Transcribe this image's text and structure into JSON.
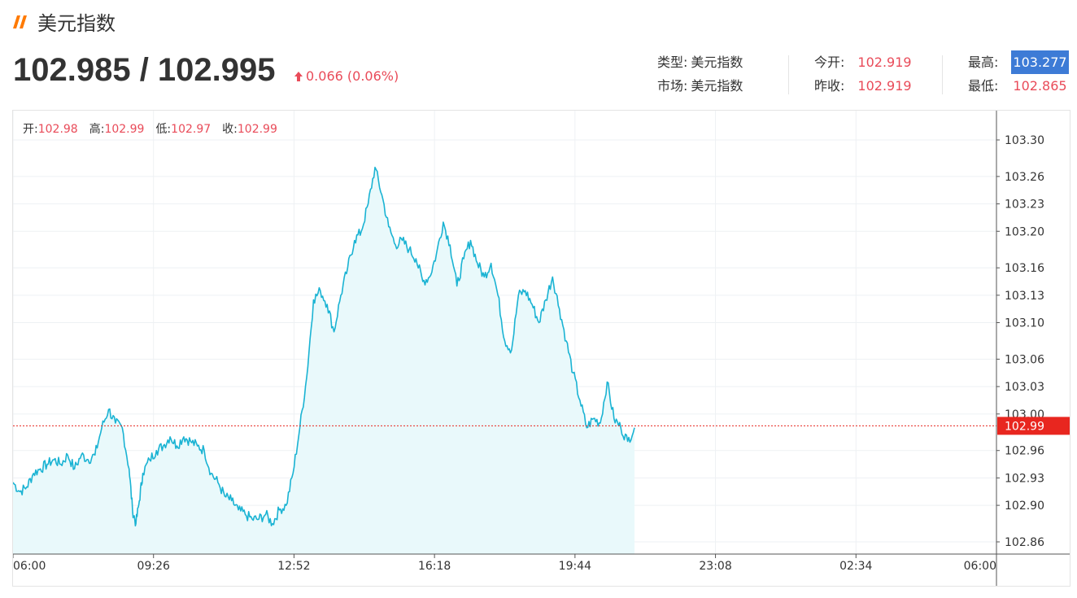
{
  "header": {
    "title": "美元指数",
    "bid_ask": "102.985 / 102.995",
    "change": "0.066 (0.06%)",
    "accent_color": "#ff7a00",
    "up_color": "#e94b59"
  },
  "info_panel": {
    "type_label": "类型:",
    "type_value": "美元指数",
    "market_label": "市场:",
    "market_value": "美元指数",
    "open_label": "今开:",
    "open_value": "102.919",
    "prev_close_label": "昨收:",
    "prev_close_value": "102.919",
    "high_label": "最高:",
    "high_value": "103.277",
    "low_label": "最低:",
    "low_value": "102.865"
  },
  "ohlc": {
    "open_label": "开:",
    "open_value": "102.98",
    "high_label": "高:",
    "high_value": "102.99",
    "low_label": "低:",
    "low_value": "102.97",
    "close_label": "收:",
    "close_value": "102.99"
  },
  "chart_data": {
    "type": "area",
    "title": "",
    "xlabel": "",
    "ylabel": "",
    "x_ticks": [
      "06:00",
      "09:26",
      "12:52",
      "16:18",
      "19:44",
      "23:08",
      "02:34",
      "06:00"
    ],
    "y_ticks": [
      "103.30",
      "103.26",
      "103.23",
      "103.20",
      "103.16",
      "103.13",
      "103.10",
      "103.06",
      "103.03",
      "103.00",
      "102.96",
      "102.93",
      "102.90",
      "102.86"
    ],
    "ylim": [
      102.855,
      103.315
    ],
    "current_price_label": "102.99",
    "current_price": 102.987,
    "line_color": "#1ab3d3",
    "fill_color": "#e9f9fb",
    "price_tag_color": "#e8261f",
    "grid": true,
    "x_minutes": [
      0,
      10,
      20,
      30,
      40,
      50,
      60,
      70,
      80,
      90,
      100,
      110,
      120,
      130,
      140,
      150,
      160,
      170,
      175,
      180,
      185,
      190,
      200,
      210,
      220,
      230,
      240,
      250,
      260,
      270,
      280,
      290,
      300,
      310,
      320,
      330,
      340,
      350,
      360,
      370,
      380,
      390,
      400,
      410,
      420,
      430,
      440,
      450,
      460,
      470,
      480,
      490,
      500,
      510,
      520,
      530,
      540,
      550,
      560,
      570,
      580,
      590,
      600,
      610,
      620,
      630,
      640,
      650,
      660,
      670,
      680,
      690,
      700,
      710,
      720,
      730,
      740,
      750,
      760,
      770,
      780,
      790,
      800,
      810,
      820,
      830,
      840,
      850,
      860,
      870,
      880,
      890,
      900,
      910
    ],
    "y_values": [
      102.925,
      102.915,
      102.92,
      102.935,
      102.94,
      102.945,
      102.95,
      102.945,
      102.955,
      102.94,
      102.955,
      102.95,
      102.955,
      102.985,
      103.005,
      102.99,
      102.985,
      102.94,
      102.895,
      102.88,
      102.905,
      102.935,
      102.95,
      102.96,
      102.965,
      102.975,
      102.965,
      102.975,
      102.97,
      102.965,
      102.96,
      102.935,
      102.925,
      102.91,
      102.905,
      102.895,
      102.89,
      102.885,
      102.885,
      102.89,
      102.88,
      102.895,
      102.9,
      102.935,
      102.985,
      103.04,
      103.125,
      103.135,
      103.12,
      103.09,
      103.13,
      103.16,
      103.19,
      103.2,
      103.23,
      103.27,
      103.24,
      103.205,
      103.185,
      103.19,
      103.18,
      103.17,
      103.145,
      103.15,
      103.175,
      103.21,
      103.185,
      103.14,
      103.17,
      103.19,
      103.165,
      103.15,
      103.165,
      103.13,
      103.08,
      103.07,
      103.13,
      103.135,
      103.12,
      103.1,
      103.125,
      103.15,
      103.115,
      103.08,
      103.045,
      103.015,
      102.985,
      102.995,
      102.99,
      103.035,
      102.995,
      102.985,
      102.97,
      102.985
    ]
  }
}
